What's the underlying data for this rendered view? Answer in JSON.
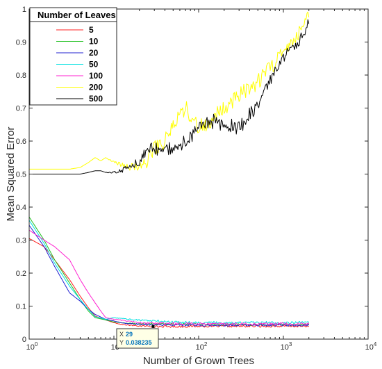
{
  "chart_data": {
    "type": "line",
    "title": "",
    "xlabel": "Number of Grown Trees",
    "ylabel": "Mean Squared Error",
    "xscale": "log",
    "xlim": [
      1,
      10000
    ],
    "ylim": [
      0,
      1
    ],
    "x_ticks": [
      1,
      10,
      100,
      1000,
      10000
    ],
    "x_tick_labels": [
      [
        "10",
        "0"
      ],
      [
        "10",
        "1"
      ],
      [
        "10",
        "2"
      ],
      [
        "10",
        "3"
      ],
      [
        "10",
        "4"
      ]
    ],
    "y_ticks": [
      0,
      0.1,
      0.2,
      0.3,
      0.4,
      0.5,
      0.6,
      0.7,
      0.8,
      0.9,
      1
    ],
    "y_tick_labels": [
      "0",
      "0.1",
      "0.2",
      "0.3",
      "0.4",
      "0.5",
      "0.6",
      "0.7",
      "0.8",
      "0.9",
      "1"
    ],
    "grid": false,
    "legend": {
      "title": "Number of Leaves",
      "position": "top-left"
    },
    "series": [
      {
        "name": "5",
        "color": "#ff2020",
        "x": [
          1,
          1.5,
          2,
          3,
          4,
          5,
          6,
          8,
          10,
          12,
          15,
          20,
          25,
          29,
          40,
          60,
          100,
          200,
          500,
          1000,
          2000
        ],
        "y": [
          0.305,
          0.28,
          0.24,
          0.18,
          0.13,
          0.095,
          0.07,
          0.058,
          0.05,
          0.045,
          0.042,
          0.04,
          0.039,
          0.038,
          0.038,
          0.038,
          0.039,
          0.039,
          0.039,
          0.039,
          0.039
        ]
      },
      {
        "name": "10",
        "color": "#20c020",
        "x": [
          1,
          1.5,
          2,
          3,
          4,
          5,
          6,
          8,
          10,
          12,
          15,
          20,
          30,
          50,
          100,
          200,
          500,
          1000,
          2000
        ],
        "y": [
          0.37,
          0.3,
          0.24,
          0.17,
          0.12,
          0.085,
          0.065,
          0.058,
          0.052,
          0.05,
          0.048,
          0.047,
          0.046,
          0.046,
          0.045,
          0.044,
          0.044,
          0.044,
          0.044
        ]
      },
      {
        "name": "20",
        "color": "#2020d0",
        "x": [
          1,
          1.5,
          2,
          3,
          4,
          5,
          6,
          8,
          10,
          12,
          15,
          20,
          30,
          50,
          100,
          200,
          500,
          1000,
          2000
        ],
        "y": [
          0.345,
          0.28,
          0.22,
          0.14,
          0.115,
          0.09,
          0.075,
          0.06,
          0.055,
          0.05,
          0.047,
          0.045,
          0.044,
          0.043,
          0.042,
          0.042,
          0.042,
          0.042,
          0.042
        ]
      },
      {
        "name": "50",
        "color": "#00e0e0",
        "x": [
          1,
          1.5,
          2,
          3,
          4,
          5,
          6,
          8,
          10,
          15,
          20,
          30,
          50,
          100,
          200,
          500,
          1000,
          2000
        ],
        "y": [
          0.36,
          0.29,
          0.23,
          0.16,
          0.12,
          0.09,
          0.068,
          0.06,
          0.065,
          0.06,
          0.058,
          0.055,
          0.052,
          0.05,
          0.05,
          0.05,
          0.05,
          0.05
        ]
      },
      {
        "name": "100",
        "color": "#ff20d0",
        "x": [
          1,
          1.5,
          2,
          3,
          4,
          5,
          6,
          7,
          8,
          10,
          15,
          20,
          30,
          50,
          100,
          200,
          500,
          1000,
          2000
        ],
        "y": [
          0.33,
          0.3,
          0.28,
          0.24,
          0.18,
          0.14,
          0.11,
          0.085,
          0.065,
          0.06,
          0.055,
          0.05,
          0.048,
          0.047,
          0.046,
          0.046,
          0.046,
          0.046,
          0.046
        ]
      },
      {
        "name": "200",
        "color": "#ffff00",
        "x": [
          1,
          2,
          3,
          4,
          5,
          6,
          7,
          8,
          10,
          12,
          15,
          20,
          25,
          30,
          40,
          50,
          70,
          100,
          150,
          200,
          300,
          500,
          700,
          1000,
          1500,
          2000
        ],
        "y": [
          0.515,
          0.515,
          0.515,
          0.52,
          0.535,
          0.55,
          0.54,
          0.55,
          0.535,
          0.53,
          0.52,
          0.525,
          0.54,
          0.58,
          0.6,
          0.65,
          0.7,
          0.64,
          0.67,
          0.7,
          0.74,
          0.78,
          0.82,
          0.88,
          0.93,
          0.975
        ]
      },
      {
        "name": "500",
        "color": "#000000",
        "x": [
          1,
          2,
          3,
          4,
          5,
          6,
          7,
          8,
          10,
          12,
          15,
          20,
          25,
          30,
          40,
          50,
          70,
          100,
          150,
          200,
          300,
          500,
          700,
          1000,
          1500,
          2000
        ],
        "y": [
          0.5,
          0.5,
          0.5,
          0.5,
          0.505,
          0.51,
          0.51,
          0.505,
          0.505,
          0.51,
          0.52,
          0.54,
          0.57,
          0.58,
          0.57,
          0.58,
          0.6,
          0.64,
          0.66,
          0.65,
          0.64,
          0.71,
          0.78,
          0.85,
          0.9,
          0.955
        ]
      }
    ],
    "datatip": {
      "x_key": "X",
      "x_value": "29",
      "y_key": "Y",
      "y_value": "0.038235",
      "point": [
        29,
        0.038235
      ]
    }
  }
}
